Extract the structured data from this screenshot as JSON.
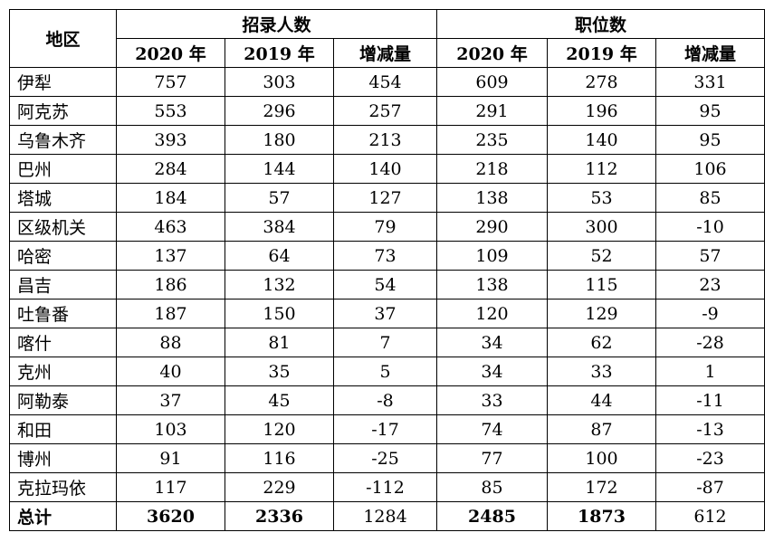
{
  "table": {
    "region_header": "地区",
    "group_headers": [
      "招录人数",
      "职位数"
    ],
    "sub_headers": [
      "2020 年",
      "2019 年",
      "增减量",
      "2020 年",
      "2019 年",
      "增减量"
    ],
    "rows": [
      {
        "region": "伊犁",
        "values": [
          "757",
          "303",
          "454",
          "609",
          "278",
          "331"
        ]
      },
      {
        "region": "阿克苏",
        "values": [
          "553",
          "296",
          "257",
          "291",
          "196",
          "95"
        ]
      },
      {
        "region": "乌鲁木齐",
        "values": [
          "393",
          "180",
          "213",
          "235",
          "140",
          "95"
        ]
      },
      {
        "region": "巴州",
        "values": [
          "284",
          "144",
          "140",
          "218",
          "112",
          "106"
        ]
      },
      {
        "region": "塔城",
        "values": [
          "184",
          "57",
          "127",
          "138",
          "53",
          "85"
        ]
      },
      {
        "region": "区级机关",
        "values": [
          "463",
          "384",
          "79",
          "290",
          "300",
          "-10"
        ]
      },
      {
        "region": "哈密",
        "values": [
          "137",
          "64",
          "73",
          "109",
          "52",
          "57"
        ]
      },
      {
        "region": "昌吉",
        "values": [
          "186",
          "132",
          "54",
          "138",
          "115",
          "23"
        ]
      },
      {
        "region": "吐鲁番",
        "values": [
          "187",
          "150",
          "37",
          "120",
          "129",
          "-9"
        ]
      },
      {
        "region": "喀什",
        "values": [
          "88",
          "81",
          "7",
          "34",
          "62",
          "-28"
        ]
      },
      {
        "region": "克州",
        "values": [
          "40",
          "35",
          "5",
          "34",
          "33",
          "1"
        ]
      },
      {
        "region": "阿勒泰",
        "values": [
          "37",
          "45",
          "-8",
          "33",
          "44",
          "-11"
        ]
      },
      {
        "region": "和田",
        "values": [
          "103",
          "120",
          "-17",
          "74",
          "87",
          "-13"
        ]
      },
      {
        "region": "博州",
        "values": [
          "91",
          "116",
          "-25",
          "77",
          "100",
          "-23"
        ]
      },
      {
        "region": "克拉玛依",
        "values": [
          "117",
          "229",
          "-112",
          "85",
          "172",
          "-87"
        ]
      }
    ],
    "total": {
      "region": "总计",
      "values": [
        "3620",
        "2336",
        "1284",
        "2485",
        "1873",
        "612"
      ]
    }
  }
}
